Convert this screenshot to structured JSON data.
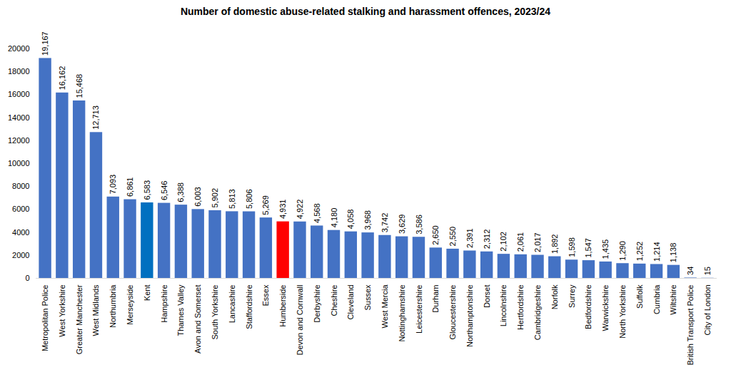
{
  "chart_data": {
    "type": "bar",
    "title": "Number of domestic abuse-related stalking and harassment offences, 2023/24",
    "categories": [
      "Metropolitan Police",
      "West Yorkshire",
      "Greater Manchester",
      "West Midlands",
      "Northumbria",
      "Merseyside",
      "Kent",
      "Hampshire",
      "Thames Valley",
      "Avon and Somerset",
      "South Yorkshire",
      "Lancashire",
      "Staffordshire",
      "Essex",
      "Humberside",
      "Devon and Cornwall",
      "Derbyshire",
      "Cheshire",
      "Cleveland",
      "Sussex",
      "West Mercia",
      "Nottinghamshire",
      "Leicestershire",
      "Durham",
      "Gloucestershire",
      "Northamptonshire",
      "Dorset",
      "Lincolnshire",
      "Hertfordshire",
      "Cambridgeshire",
      "Norfolk",
      "Surrey",
      "Bedfordshire",
      "Warwickshire",
      "North Yorkshire",
      "Suffolk",
      "Cumbria",
      "Wiltshire",
      "British Transport Police",
      "City of London"
    ],
    "values": [
      19167,
      16162,
      15468,
      12713,
      7093,
      6861,
      6583,
      6546,
      6388,
      6003,
      5902,
      5813,
      5806,
      5269,
      4931,
      4922,
      4568,
      4180,
      4058,
      3968,
      3742,
      3629,
      3586,
      2650,
      2550,
      2391,
      2312,
      2102,
      2061,
      2017,
      1892,
      1598,
      1547,
      1435,
      1290,
      1252,
      1214,
      1138,
      34,
      15
    ],
    "value_labels": [
      "19,167",
      "16,162",
      "15,468",
      "12,713",
      "7,093",
      "6,861",
      "6,583",
      "6,546",
      "6,388",
      "6,003",
      "5,902",
      "5,813",
      "5,806",
      "5,269",
      "4,931",
      "4,922",
      "4,568",
      "4,180",
      "4,058",
      "3,968",
      "3,742",
      "3,629",
      "3,586",
      "2,650",
      "2,550",
      "2,391",
      "2,312",
      "2,102",
      "2,061",
      "2,017",
      "1,892",
      "1,598",
      "1,547",
      "1,435",
      "1,290",
      "1,252",
      "1,214",
      "1,138",
      "34",
      "15"
    ],
    "colors": [
      "#4472C4",
      "#4472C4",
      "#4472C4",
      "#4472C4",
      "#4472C4",
      "#4472C4",
      "#0070C0",
      "#4472C4",
      "#4472C4",
      "#4472C4",
      "#4472C4",
      "#4472C4",
      "#4472C4",
      "#4472C4",
      "#FF0000",
      "#4472C4",
      "#4472C4",
      "#4472C4",
      "#4472C4",
      "#4472C4",
      "#4472C4",
      "#4472C4",
      "#4472C4",
      "#4472C4",
      "#4472C4",
      "#4472C4",
      "#4472C4",
      "#4472C4",
      "#4472C4",
      "#4472C4",
      "#4472C4",
      "#4472C4",
      "#4472C4",
      "#4472C4",
      "#4472C4",
      "#4472C4",
      "#4472C4",
      "#4472C4",
      "#4472C4",
      "#4472C4"
    ],
    "ylim": [
      0,
      20000
    ],
    "yticks": [
      0,
      2000,
      4000,
      6000,
      8000,
      10000,
      12000,
      14000,
      16000,
      18000,
      20000
    ],
    "grid": false,
    "data_labels": true
  }
}
